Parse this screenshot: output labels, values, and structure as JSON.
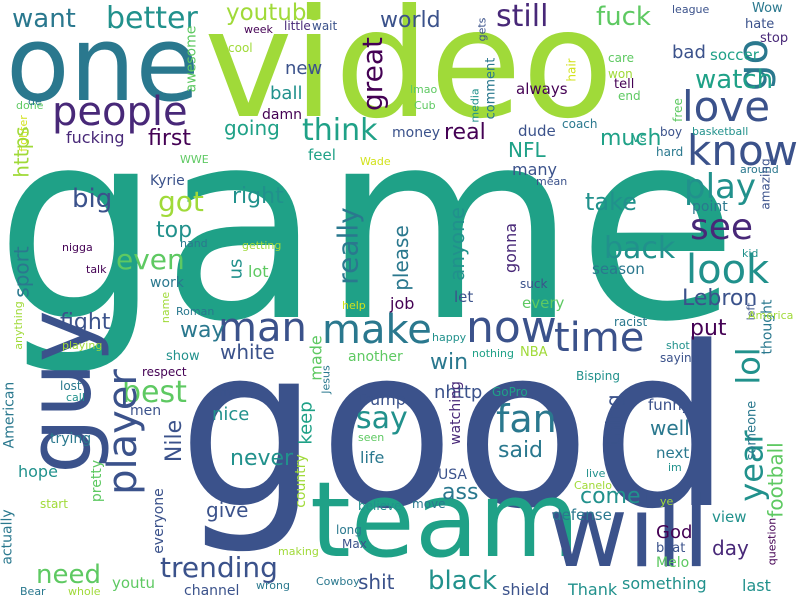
{
  "background_color": "#ffffff",
  "palette": [
    "#440154",
    "#3b528b",
    "#21918c",
    "#2a788e",
    "#1fa187",
    "#5ec962",
    "#a0da39",
    "#d2e21b",
    "#fde725",
    "#482878"
  ],
  "words": [
    {
      "text": "game",
      "color": "#1fa187"
    },
    {
      "text": "good",
      "color": "#3b528b"
    },
    {
      "text": "video",
      "color": "#a0da39"
    },
    {
      "text": "one",
      "color": "#2a788e"
    },
    {
      "text": "team",
      "color": "#1fa187"
    },
    {
      "text": "will",
      "color": "#3b528b"
    },
    {
      "text": "guy",
      "color": "#3b528b"
    },
    {
      "text": "people",
      "color": "#482878"
    },
    {
      "text": "want",
      "color": "#2a788e"
    },
    {
      "text": "better",
      "color": "#21918c"
    },
    {
      "text": "youtube",
      "color": "#a0da39"
    },
    {
      "text": "great",
      "color": "#440154"
    },
    {
      "text": "world",
      "color": "#3b528b"
    },
    {
      "text": "still",
      "color": "#482878"
    },
    {
      "text": "fuck",
      "color": "#5ec962"
    },
    {
      "text": "go",
      "color": "#2a788e"
    },
    {
      "text": "love",
      "color": "#3b528b"
    },
    {
      "text": "know",
      "color": "#3b528b"
    },
    {
      "text": "watch",
      "color": "#1fa187"
    },
    {
      "text": "bad",
      "color": "#3b528b"
    },
    {
      "text": "soccer",
      "color": "#1fa187"
    },
    {
      "text": "hate",
      "color": "#3b528b"
    },
    {
      "text": "stop",
      "color": "#482878"
    },
    {
      "text": "Wow",
      "color": "#2a788e"
    },
    {
      "text": "league",
      "color": "#3b528b"
    },
    {
      "text": "gets",
      "color": "#3b528b"
    },
    {
      "text": "wait",
      "color": "#3b528b"
    },
    {
      "text": "little",
      "color": "#482878"
    },
    {
      "text": "week",
      "color": "#440154"
    },
    {
      "text": "cool",
      "color": "#a0da39"
    },
    {
      "text": "awesome",
      "color": "#5ec962"
    },
    {
      "text": "new",
      "color": "#3b528b"
    },
    {
      "text": "ball",
      "color": "#21918c"
    },
    {
      "text": "damn",
      "color": "#440154"
    },
    {
      "text": "media",
      "color": "#21918c"
    },
    {
      "text": "done",
      "color": "#5ec962"
    },
    {
      "text": "de",
      "color": "#2a788e"
    },
    {
      "text": "fighter",
      "color": "#d2e21b"
    },
    {
      "text": "https",
      "color": "#a0da39"
    },
    {
      "text": "first",
      "color": "#440154"
    },
    {
      "text": "going",
      "color": "#1fa187"
    },
    {
      "text": "think",
      "color": "#1fa187"
    },
    {
      "text": "money",
      "color": "#3b528b"
    },
    {
      "text": "real",
      "color": "#440154"
    },
    {
      "text": "lmao",
      "color": "#5ec962"
    },
    {
      "text": "Cub",
      "color": "#5ec962"
    },
    {
      "text": "comment",
      "color": "#2a788e"
    },
    {
      "text": "always",
      "color": "#440154"
    },
    {
      "text": "dude",
      "color": "#3b528b"
    },
    {
      "text": "coach",
      "color": "#2a788e"
    },
    {
      "text": "hair",
      "color": "#d2e21b"
    },
    {
      "text": "care",
      "color": "#5ec962"
    },
    {
      "text": "won",
      "color": "#a0da39"
    },
    {
      "text": "tell",
      "color": "#440154"
    },
    {
      "text": "end",
      "color": "#5ec962"
    },
    {
      "text": "free",
      "color": "#5ec962"
    },
    {
      "text": "boy",
      "color": "#3b528b"
    },
    {
      "text": "basketball",
      "color": "#21918c"
    },
    {
      "text": "hard",
      "color": "#2a788e"
    },
    {
      "text": "around",
      "color": "#2a788e"
    },
    {
      "text": "fucking",
      "color": "#482878"
    },
    {
      "text": "WWE",
      "color": "#5ec962"
    },
    {
      "text": "feel",
      "color": "#1fa187"
    },
    {
      "text": "Wade",
      "color": "#d2e21b"
    },
    {
      "text": "NFL",
      "color": "#1fa187"
    },
    {
      "text": "much",
      "color": "#1fa187"
    },
    {
      "text": "vs",
      "color": "#1fa187"
    },
    {
      "text": "many",
      "color": "#3b528b"
    },
    {
      "text": "mean",
      "color": "#3b528b"
    },
    {
      "text": "play",
      "color": "#21918c"
    },
    {
      "text": "see",
      "color": "#482878"
    },
    {
      "text": "point",
      "color": "#2a788e"
    },
    {
      "text": "kid",
      "color": "#21918c"
    },
    {
      "text": "amazing",
      "color": "#3b528b"
    },
    {
      "text": "take",
      "color": "#21918c"
    },
    {
      "text": "big",
      "color": "#3b528b"
    },
    {
      "text": "got",
      "color": "#a0da39"
    },
    {
      "text": "right",
      "color": "#21918c"
    },
    {
      "text": "Kyrie",
      "color": "#3b528b"
    },
    {
      "text": "hand",
      "color": "#2a788e"
    },
    {
      "text": "top",
      "color": "#21918c"
    },
    {
      "text": "even",
      "color": "#5ec962"
    },
    {
      "text": "sport",
      "color": "#2a788e"
    },
    {
      "text": "getting",
      "color": "#a0da39"
    },
    {
      "text": "nigga",
      "color": "#440154"
    },
    {
      "text": "talk",
      "color": "#440154"
    },
    {
      "text": "really",
      "color": "#2a788e"
    },
    {
      "text": "please",
      "color": "#2a788e"
    },
    {
      "text": "anyone",
      "color": "#21918c"
    },
    {
      "text": "gonna",
      "color": "#482878"
    },
    {
      "text": "back",
      "color": "#21918c"
    },
    {
      "text": "look",
      "color": "#21918c"
    },
    {
      "text": "us",
      "color": "#21918c"
    },
    {
      "text": "lot",
      "color": "#5ec962"
    },
    {
      "text": "work",
      "color": "#2a788e"
    },
    {
      "text": "season",
      "color": "#2a788e"
    },
    {
      "text": "fight",
      "color": "#3b528b"
    },
    {
      "text": "man",
      "color": "#3b528b"
    },
    {
      "text": "make",
      "color": "#2a788e"
    },
    {
      "text": "now",
      "color": "#3b528b"
    },
    {
      "text": "Lebron",
      "color": "#3b528b"
    },
    {
      "text": "let",
      "color": "#3b528b"
    },
    {
      "text": "suck",
      "color": "#3b528b"
    },
    {
      "text": "job",
      "color": "#440154"
    },
    {
      "text": "every",
      "color": "#5ec962"
    },
    {
      "text": "help",
      "color": "#d2e21b"
    },
    {
      "text": "time",
      "color": "#3b528b"
    },
    {
      "text": "lol",
      "color": "#21918c"
    },
    {
      "text": "way",
      "color": "#2a788e"
    },
    {
      "text": "Roman",
      "color": "#2a788e"
    },
    {
      "text": "name",
      "color": "#a0da39"
    },
    {
      "text": "anything",
      "color": "#a0da39"
    },
    {
      "text": "playing",
      "color": "#a0da39"
    },
    {
      "text": "show",
      "color": "#21918c"
    },
    {
      "text": "white",
      "color": "#3b528b"
    },
    {
      "text": "made",
      "color": "#5ec962"
    },
    {
      "text": "another",
      "color": "#5ec962"
    },
    {
      "text": "win",
      "color": "#2a788e"
    },
    {
      "text": "NBA",
      "color": "#a0da39"
    },
    {
      "text": "nothing",
      "color": "#1fa187"
    },
    {
      "text": "racist",
      "color": "#2a788e"
    },
    {
      "text": "happy",
      "color": "#21918c"
    },
    {
      "text": "put",
      "color": "#440154"
    },
    {
      "text": "left",
      "color": "#3b528b"
    },
    {
      "text": "thought",
      "color": "#2a788e"
    },
    {
      "text": "America",
      "color": "#a0da39"
    },
    {
      "text": "shot",
      "color": "#21918c"
    },
    {
      "text": "saying",
      "color": "#3b528b"
    },
    {
      "text": "respect",
      "color": "#440154"
    },
    {
      "text": "lost",
      "color": "#2a788e"
    },
    {
      "text": "call",
      "color": "#21918c"
    },
    {
      "text": "American",
      "color": "#2a788e"
    },
    {
      "text": "best",
      "color": "#5ec962"
    },
    {
      "text": "player",
      "color": "#3b528b"
    },
    {
      "text": "men",
      "color": "#3b528b"
    },
    {
      "text": "anvil",
      "color": "#3b528b"
    },
    {
      "text": "Jesus",
      "color": "#2a788e"
    },
    {
      "text": "nhttp",
      "color": "#3b528b"
    },
    {
      "text": "watching",
      "color": "#482878"
    },
    {
      "text": "GoPro",
      "color": "#1fa187"
    },
    {
      "text": "Bisping",
      "color": "#21918c"
    },
    {
      "text": "year",
      "color": "#21918c"
    },
    {
      "text": "football",
      "color": "#5ec962"
    },
    {
      "text": "trying",
      "color": "#2a788e"
    },
    {
      "text": "hope",
      "color": "#21918c"
    },
    {
      "text": "pretty",
      "color": "#5ec962"
    },
    {
      "text": "Nile",
      "color": "#3b528b"
    },
    {
      "text": "nice",
      "color": "#21918c"
    },
    {
      "text": "keep",
      "color": "#1fa187"
    },
    {
      "text": "say",
      "color": "#21918c"
    },
    {
      "text": "Trump",
      "color": "#3b528b"
    },
    {
      "text": "seen",
      "color": "#5ec962"
    },
    {
      "text": "fan",
      "color": "#2a788e"
    },
    {
      "text": "thing",
      "color": "#3b528b"
    },
    {
      "text": "said",
      "color": "#2a788e"
    },
    {
      "text": "funny",
      "color": "#3b528b"
    },
    {
      "text": "well",
      "color": "#2a788e"
    },
    {
      "text": "someone",
      "color": "#2a788e"
    },
    {
      "text": "next",
      "color": "#2a788e"
    },
    {
      "text": "im",
      "color": "#21918c"
    },
    {
      "text": "never",
      "color": "#21918c"
    },
    {
      "text": "life",
      "color": "#2a788e"
    },
    {
      "text": "everyone",
      "color": "#3b528b"
    },
    {
      "text": "country",
      "color": "#a0da39"
    },
    {
      "text": "USA",
      "color": "#3b528b"
    },
    {
      "text": "ass",
      "color": "#2a788e"
    },
    {
      "text": "come",
      "color": "#21918c"
    },
    {
      "text": "live",
      "color": "#21918c"
    },
    {
      "text": "Canelo",
      "color": "#a0da39"
    },
    {
      "text": "ye",
      "color": "#a0da39"
    },
    {
      "text": "actually",
      "color": "#2a788e"
    },
    {
      "text": "start",
      "color": "#a0da39"
    },
    {
      "text": "give",
      "color": "#3b528b"
    },
    {
      "text": "believe",
      "color": "#21918c"
    },
    {
      "text": "move",
      "color": "#2a788e"
    },
    {
      "text": "defense",
      "color": "#2a788e"
    },
    {
      "text": "God",
      "color": "#440154"
    },
    {
      "text": "beat",
      "color": "#3b528b"
    },
    {
      "text": "Melo",
      "color": "#5ec962"
    },
    {
      "text": "view",
      "color": "#21918c"
    },
    {
      "text": "question",
      "color": "#440154"
    },
    {
      "text": "day",
      "color": "#482878"
    },
    {
      "text": "need",
      "color": "#5ec962"
    },
    {
      "text": "trending",
      "color": "#3b528b"
    },
    {
      "text": "making",
      "color": "#a0da39"
    },
    {
      "text": "long",
      "color": "#2a788e"
    },
    {
      "text": "Max",
      "color": "#3b528b"
    },
    {
      "text": "youtu",
      "color": "#5ec962"
    },
    {
      "text": "shit",
      "color": "#3b528b"
    },
    {
      "text": "black",
      "color": "#21918c"
    },
    {
      "text": "Cowboy",
      "color": "#2a788e"
    },
    {
      "text": "wrong",
      "color": "#2a788e"
    },
    {
      "text": "channel",
      "color": "#3b528b"
    },
    {
      "text": "shield",
      "color": "#3b528b"
    },
    {
      "text": "Thank",
      "color": "#21918c"
    },
    {
      "text": "something",
      "color": "#21918c"
    },
    {
      "text": "last",
      "color": "#21918c"
    },
    {
      "text": "Bear",
      "color": "#2a788e"
    },
    {
      "text": "whole",
      "color": "#a0da39"
    }
  ]
}
